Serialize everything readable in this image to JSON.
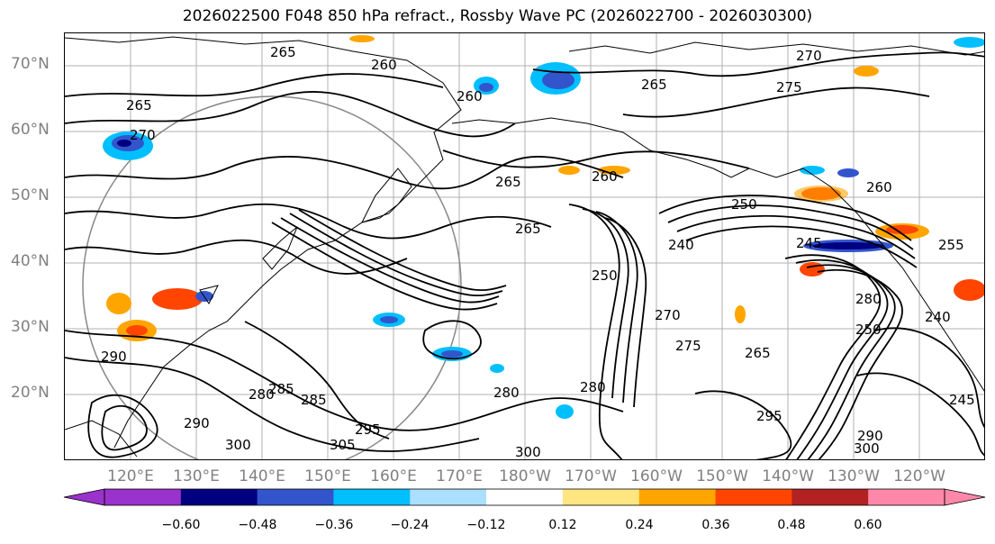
{
  "title": "2026022500 F048 850 hPa refract., Rossby Wave PC (2026022700 - 2026030300)",
  "lat_labels": [
    "70°N",
    "60°N",
    "50°N",
    "40°N",
    "30°N",
    "20°N"
  ],
  "lon_labels": [
    "120°E",
    "130°E",
    "140°E",
    "150°E",
    "160°E",
    "170°E",
    "180°W",
    "170°W",
    "160°W",
    "150°W",
    "140°W",
    "130°W",
    "120°W"
  ],
  "colorbar": {
    "tick_labels": [
      "−0.60",
      "−0.48",
      "−0.36",
      "−0.24",
      "−0.12",
      "0.12",
      "0.24",
      "0.36",
      "0.48",
      "0.60"
    ],
    "colors": [
      "#9933cc",
      "#000080",
      "#3355cc",
      "#00bfff",
      "#aadfff",
      "#ffffff",
      "#ffe680",
      "#ffa500",
      "#ff4500",
      "#b22222",
      "#ff88aa",
      "#ff88aa"
    ]
  },
  "contour_labels": [
    "265",
    "260",
    "270",
    "265",
    "265",
    "260",
    "270",
    "275",
    "265",
    "260",
    "265",
    "260",
    "250",
    "245",
    "255",
    "240",
    "250",
    "270",
    "275",
    "265",
    "280",
    "285",
    "290",
    "295",
    "300",
    "305",
    "280",
    "290",
    "300",
    "295",
    "280",
    "285",
    "250",
    "240",
    "245",
    "300",
    "280",
    "290"
  ]
}
